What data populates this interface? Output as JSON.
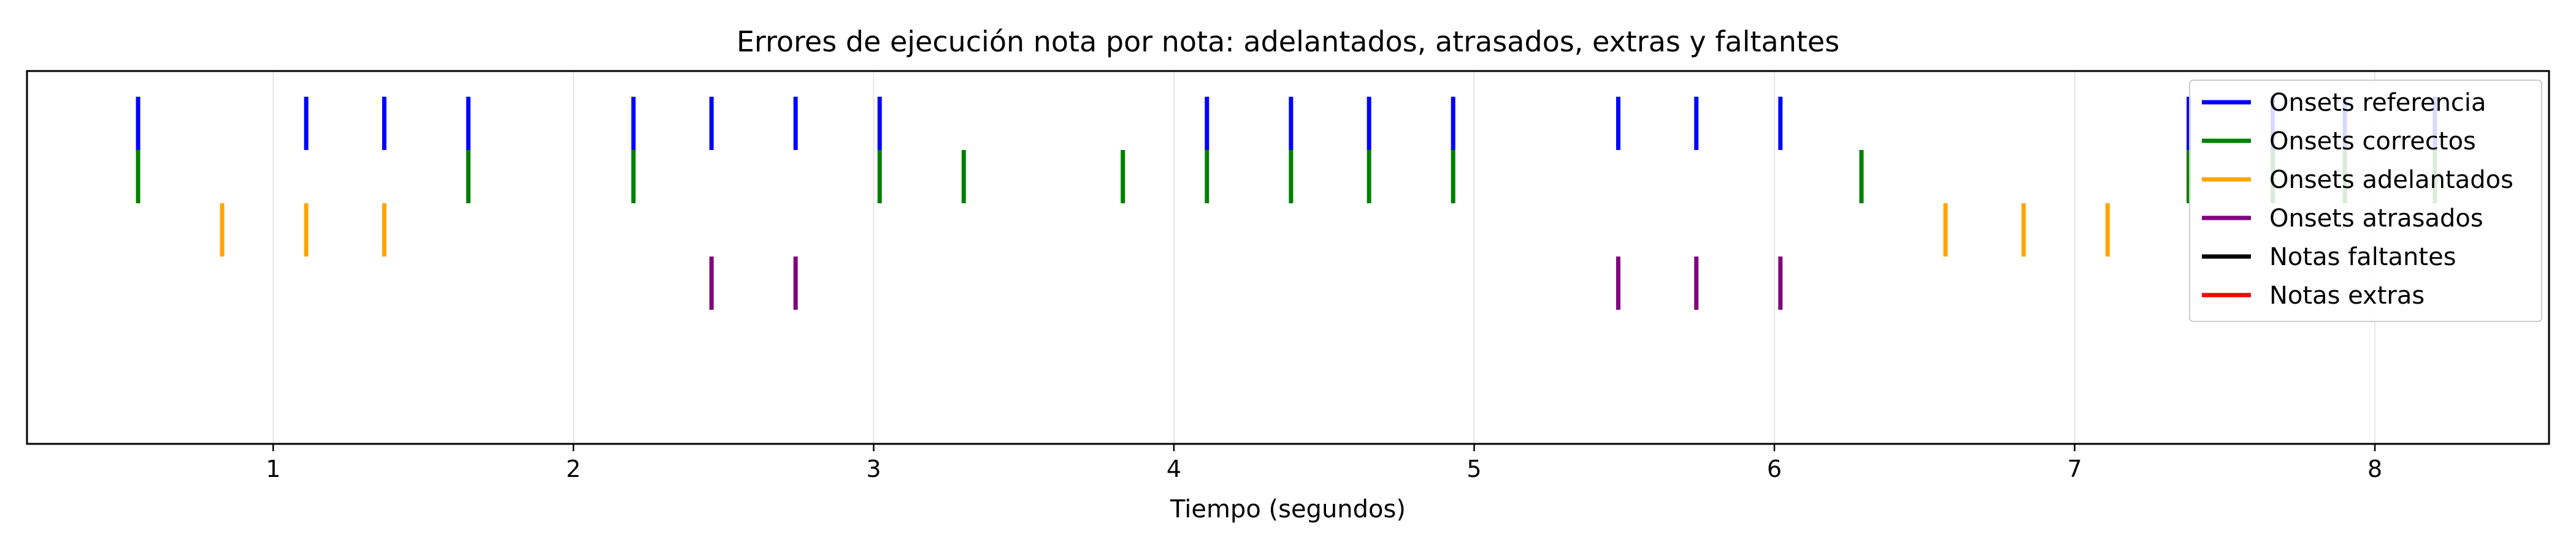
{
  "chart_data": {
    "type": "event",
    "title": "Errores de ejecución nota por nota: adelantados, atrasados, extras y faltantes",
    "xlabel": "Tiempo (segundos)",
    "ylabel": "",
    "xlim": [
      0.18,
      8.58
    ],
    "xticks": [
      1,
      2,
      3,
      4,
      5,
      6,
      7,
      8
    ],
    "grid": "vertical",
    "legend_position": "top-right",
    "series": [
      {
        "name": "Onsets referencia",
        "color": "#0000ff",
        "row": 0,
        "x": [
          0.55,
          1.11,
          1.37,
          1.65,
          2.2,
          2.46,
          2.74,
          3.02,
          4.11,
          4.39,
          4.65,
          4.93,
          5.48,
          5.74,
          6.02,
          7.38,
          7.66,
          7.9,
          8.2
        ]
      },
      {
        "name": "Onsets correctos",
        "color": "#008000",
        "row": 1,
        "x": [
          0.55,
          1.65,
          2.2,
          3.02,
          3.3,
          3.83,
          4.11,
          4.39,
          4.65,
          4.93,
          6.29,
          7.38,
          7.66,
          7.9,
          8.2
        ]
      },
      {
        "name": "Onsets adelantados",
        "color": "#ffa500",
        "row": 2,
        "x": [
          0.83,
          1.11,
          1.37,
          6.57,
          6.83,
          7.11
        ]
      },
      {
        "name": "Onsets atrasados",
        "color": "#800080",
        "row": 3,
        "x": [
          2.46,
          2.74,
          5.48,
          5.74,
          6.02
        ]
      },
      {
        "name": "Notas faltantes",
        "color": "#000000",
        "row": 4,
        "x": []
      },
      {
        "name": "Notas extras",
        "color": "#ff0000",
        "row": 5,
        "x": []
      }
    ]
  }
}
